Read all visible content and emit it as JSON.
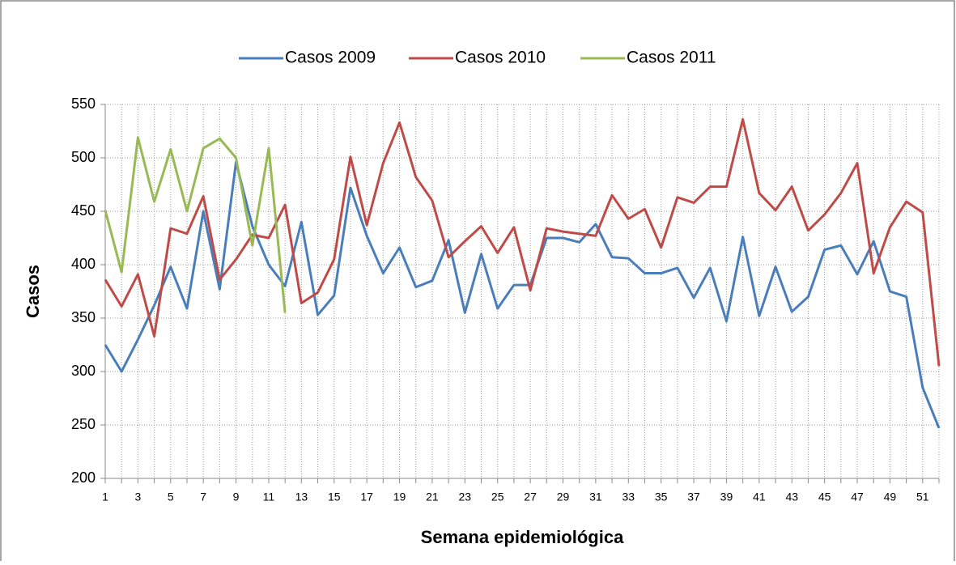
{
  "chart_data": {
    "type": "line",
    "ylabel": "Casos",
    "xlabel": "Semana epidemiológica",
    "categories": [
      "1",
      null,
      "3",
      null,
      "5",
      null,
      "7",
      null,
      "9",
      null,
      "11",
      null,
      "13",
      null,
      "15",
      null,
      "17",
      null,
      "19",
      null,
      "21",
      null,
      "23",
      null,
      "25",
      null,
      "27",
      null,
      "29",
      null,
      "31",
      null,
      "33",
      null,
      "35",
      null,
      "37",
      null,
      "39",
      null,
      "41",
      null,
      "43",
      null,
      "45",
      null,
      "47",
      null,
      "49",
      null,
      "51",
      null
    ],
    "series": [
      {
        "name": "Casos 2009",
        "color": "#4a7ebb",
        "values": [
          325,
          300,
          330,
          362,
          398,
          359,
          450,
          377,
          496,
          436,
          400,
          380,
          440,
          353,
          371,
          472,
          427,
          392,
          416,
          379,
          385,
          423,
          355,
          410,
          359,
          381,
          381,
          425,
          425,
          421,
          438,
          407,
          406,
          392,
          392,
          397,
          369,
          397,
          347,
          426,
          352,
          398,
          356,
          370,
          414,
          418,
          391,
          422,
          375,
          370,
          285,
          247
        ]
      },
      {
        "name": "Casos 2010",
        "color": "#be4b48",
        "values": [
          386,
          361,
          391,
          333,
          434,
          429,
          464,
          386,
          405,
          428,
          425,
          456,
          364,
          374,
          405,
          501,
          437,
          495,
          533,
          482,
          460,
          407,
          422,
          436,
          411,
          435,
          376,
          434,
          431,
          429,
          427,
          465,
          443,
          452,
          416,
          463,
          458,
          473,
          473,
          536,
          467,
          451,
          473,
          432,
          447,
          467,
          495,
          392,
          435,
          459,
          449,
          305
        ]
      },
      {
        "name": "Casos 2011",
        "color": "#98b954",
        "values": [
          451,
          393,
          519,
          459,
          508,
          450,
          509,
          518,
          500,
          418,
          509,
          355,
          null,
          null,
          null,
          null,
          null,
          null,
          null,
          null,
          null,
          null,
          null,
          null,
          null,
          null,
          null,
          null,
          null,
          null,
          null,
          null,
          null,
          null,
          null,
          null,
          null,
          null,
          null,
          null,
          null,
          null,
          null,
          null,
          null,
          null,
          null,
          null,
          null,
          null,
          null,
          null
        ]
      }
    ],
    "ylim": [
      200,
      550
    ],
    "yticks": [
      200,
      250,
      300,
      350,
      400,
      450,
      500,
      550
    ],
    "grid": true,
    "legend": "top"
  }
}
